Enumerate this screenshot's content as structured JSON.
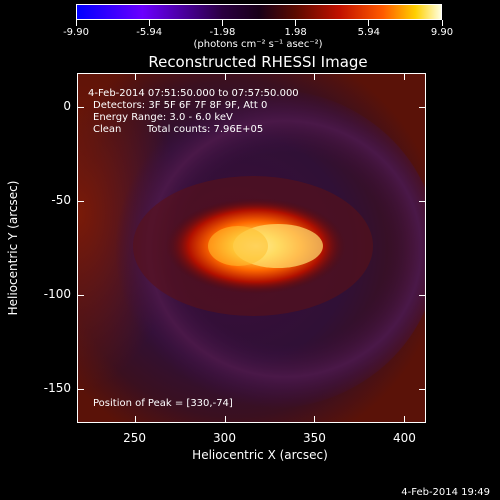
{
  "colorbar": {
    "labels": [
      "-9.90",
      "-5.94",
      "-1.98",
      "1.98",
      "5.94",
      "9.90"
    ],
    "units": "(photons cm⁻² s⁻¹ asec⁻²)"
  },
  "title": "Reconstructed RHESSI Image",
  "info": {
    "time_range": "4-Feb-2014 07:51:50.000 to 07:57:50.000",
    "detectors": "Detectors: 3F 5F 6F 7F 8F 9F, Att 0",
    "energy": "Energy Range: 3.0 - 6.0 keV",
    "algorithm": "Clean",
    "counts": "Total counts: 7.96E+05",
    "peak": "Position of Peak = [330,-74]"
  },
  "axes": {
    "x_title": "Heliocentric X (arcsec)",
    "y_title": "Heliocentric Y (arcsec)",
    "x_ticks": [
      "250",
      "300",
      "350",
      "400"
    ],
    "y_ticks": [
      "0",
      "-50",
      "-100",
      "-150"
    ]
  },
  "timestamp": "4-Feb-2014 19:49",
  "image_data": {
    "peak_x": 330,
    "peak_y": -74,
    "colorbar_range": [
      -9.9,
      9.9
    ]
  }
}
